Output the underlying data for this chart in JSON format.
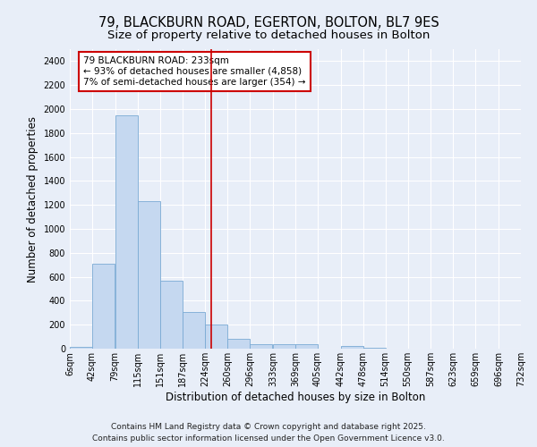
{
  "title": "79, BLACKBURN ROAD, EGERTON, BOLTON, BL7 9ES",
  "subtitle": "Size of property relative to detached houses in Bolton",
  "xlabel": "Distribution of detached houses by size in Bolton",
  "ylabel": "Number of detached properties",
  "bin_edges": [
    6,
    42,
    79,
    115,
    151,
    187,
    224,
    260,
    296,
    333,
    369,
    405,
    442,
    478,
    514,
    550,
    587,
    623,
    659,
    696,
    732
  ],
  "bar_heights": [
    15,
    710,
    1950,
    1230,
    570,
    305,
    205,
    85,
    40,
    35,
    35,
    0,
    20,
    5,
    0,
    0,
    0,
    0,
    0,
    0
  ],
  "bar_color": "#c5d8f0",
  "bar_edge_color": "#7aaad4",
  "background_color": "#e8eef8",
  "grid_color": "#ffffff",
  "vline_x": 233,
  "vline_color": "#cc0000",
  "ylim": [
    0,
    2500
  ],
  "yticks": [
    0,
    200,
    400,
    600,
    800,
    1000,
    1200,
    1400,
    1600,
    1800,
    2000,
    2200,
    2400
  ],
  "annotation_title": "79 BLACKBURN ROAD: 233sqm",
  "annotation_line1": "← 93% of detached houses are smaller (4,858)",
  "annotation_line2": "7% of semi-detached houses are larger (354) →",
  "annotation_box_color": "#ffffff",
  "annotation_border_color": "#cc0000",
  "footer_line1": "Contains HM Land Registry data © Crown copyright and database right 2025.",
  "footer_line2": "Contains public sector information licensed under the Open Government Licence v3.0.",
  "title_fontsize": 10.5,
  "subtitle_fontsize": 9.5,
  "tick_label_fontsize": 7,
  "axis_label_fontsize": 8.5,
  "footer_fontsize": 6.5
}
